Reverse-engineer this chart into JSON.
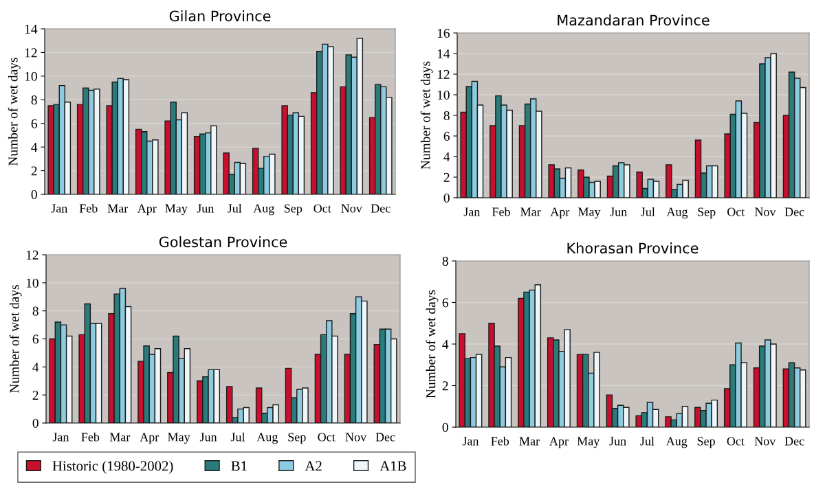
{
  "chart_data": [
    {
      "type": "bar",
      "title": "Gilan Province",
      "ylabel": "Number of wet days",
      "categories": [
        "Jan",
        "Feb",
        "Mar",
        "Apr",
        "May",
        "Jun",
        "Jul",
        "Aug",
        "Sep",
        "Oct",
        "Nov",
        "Dec"
      ],
      "ylim": [
        0,
        14
      ],
      "yticks": [
        0,
        2,
        4,
        6,
        8,
        10,
        12,
        14
      ],
      "grid": "y",
      "series": [
        {
          "color": "#c8102e",
          "values": [
            7.5,
            7.6,
            7.5,
            5.5,
            6.2,
            4.9,
            3.5,
            3.9,
            7.5,
            8.6,
            9.1,
            6.5
          ]
        },
        {
          "color": "#2a7b7b",
          "values": [
            7.6,
            9.0,
            9.5,
            5.3,
            7.8,
            5.1,
            1.7,
            2.2,
            6.7,
            12.1,
            11.8,
            9.3
          ]
        },
        {
          "color": "#8ccbe0",
          "values": [
            9.2,
            8.8,
            9.8,
            4.5,
            6.3,
            5.2,
            2.7,
            3.2,
            6.9,
            12.7,
            11.6,
            9.1
          ]
        },
        {
          "color": "#eef6fa",
          "values": [
            7.8,
            8.9,
            9.7,
            4.6,
            6.9,
            5.8,
            2.6,
            3.4,
            6.6,
            12.5,
            13.2,
            8.2
          ]
        }
      ]
    },
    {
      "type": "bar",
      "title": "Mazandaran Province",
      "ylabel": "Number of wet days",
      "categories": [
        "Jan",
        "Feb",
        "Mar",
        "Apr",
        "May",
        "Jun",
        "Jul",
        "Aug",
        "Sep",
        "Oct",
        "Nov",
        "Dec"
      ],
      "ylim": [
        0,
        16
      ],
      "yticks": [
        0,
        2,
        4,
        6,
        8,
        10,
        12,
        14,
        16
      ],
      "grid": "y",
      "series": [
        {
          "color": "#c8102e",
          "values": [
            8.3,
            7.0,
            7.0,
            3.2,
            2.7,
            2.1,
            2.5,
            3.2,
            5.6,
            6.2,
            7.3,
            8.0
          ]
        },
        {
          "color": "#2a7b7b",
          "values": [
            10.8,
            9.9,
            9.1,
            2.8,
            2.0,
            3.1,
            0.9,
            0.8,
            2.4,
            8.1,
            13.0,
            12.2
          ]
        },
        {
          "color": "#8ccbe0",
          "values": [
            11.3,
            9.0,
            9.6,
            1.9,
            1.5,
            3.4,
            1.8,
            1.3,
            3.1,
            9.4,
            13.6,
            11.6
          ]
        },
        {
          "color": "#eef6fa",
          "values": [
            9.0,
            8.5,
            8.4,
            2.9,
            1.6,
            3.2,
            1.6,
            1.7,
            3.1,
            8.2,
            14.0,
            10.7
          ]
        }
      ]
    },
    {
      "type": "bar",
      "title": "Golestan Province",
      "ylabel": "Number of wet days",
      "categories": [
        "Jan",
        "Feb",
        "Mar",
        "Apr",
        "May",
        "Jun",
        "Jul",
        "Aug",
        "Sep",
        "Oct",
        "Nov",
        "Dec"
      ],
      "ylim": [
        0,
        12
      ],
      "yticks": [
        0,
        2,
        4,
        6,
        8,
        10,
        12
      ],
      "grid": "y",
      "legend": "bottom",
      "series": [
        {
          "name": "Historic (1980-2002)",
          "color": "#c8102e",
          "values": [
            6.0,
            6.3,
            7.8,
            4.4,
            3.6,
            3.0,
            2.6,
            2.5,
            3.9,
            4.9,
            4.9,
            5.6
          ]
        },
        {
          "name": "B1",
          "color": "#2a7b7b",
          "values": [
            7.2,
            8.5,
            9.2,
            5.5,
            6.2,
            3.3,
            0.4,
            0.7,
            1.8,
            6.3,
            7.8,
            6.7
          ]
        },
        {
          "name": "A2",
          "color": "#8ccbe0",
          "values": [
            7.0,
            7.1,
            9.6,
            4.9,
            4.6,
            3.8,
            1.0,
            1.1,
            2.4,
            7.3,
            9.0,
            6.7
          ]
        },
        {
          "name": "A1B",
          "color": "#eef6fa",
          "values": [
            6.2,
            7.1,
            8.3,
            5.3,
            5.3,
            3.8,
            1.1,
            1.3,
            2.5,
            6.2,
            8.7,
            6.0
          ]
        }
      ]
    },
    {
      "type": "bar",
      "title": "Khorasan Province",
      "ylabel": "Number of wet days",
      "categories": [
        "Jan",
        "Feb",
        "Mar",
        "Apr",
        "May",
        "Jun",
        "Jul",
        "Aug",
        "Sep",
        "Oct",
        "Nov",
        "Dec"
      ],
      "ylim": [
        0,
        8
      ],
      "yticks": [
        0,
        2,
        4,
        6,
        8
      ],
      "grid": "y",
      "series": [
        {
          "color": "#c8102e",
          "values": [
            4.5,
            5.0,
            6.2,
            4.3,
            3.5,
            1.55,
            0.55,
            0.5,
            0.95,
            1.85,
            2.85,
            2.8
          ]
        },
        {
          "color": "#2a7b7b",
          "values": [
            3.3,
            3.9,
            6.5,
            4.2,
            3.5,
            0.9,
            0.7,
            0.35,
            0.8,
            3.0,
            3.9,
            3.1
          ]
        },
        {
          "color": "#8ccbe0",
          "values": [
            3.35,
            2.9,
            6.6,
            3.65,
            2.6,
            1.05,
            1.2,
            0.65,
            1.15,
            4.05,
            4.2,
            2.85
          ]
        },
        {
          "color": "#eef6fa",
          "values": [
            3.5,
            3.35,
            6.85,
            4.7,
            3.6,
            0.95,
            0.85,
            1.0,
            1.3,
            3.1,
            4.0,
            2.75
          ]
        }
      ]
    }
  ]
}
